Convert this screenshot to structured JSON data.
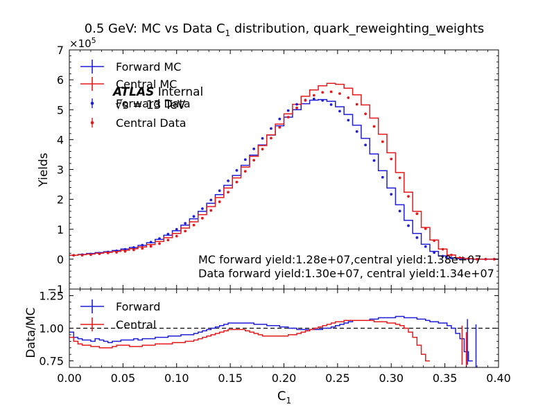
{
  "title_prefix": "0.5 GeV: MC vs Data C",
  "title_sub": "1",
  "title_suffix": " distribution, quark_reweighting_weights",
  "atlas": {
    "bold": "ATLAS",
    "rest": " Internal",
    "energy": "√s = 13 TeV"
  },
  "annotations": {
    "mc_yield": "MC forward yield:1.28e+07,central yield:1.38e+07",
    "data_yield": "Data forward yield:1.30e+07, central yield:1.34e+07"
  },
  "colors": {
    "forward": "#1f1fd6",
    "central": "#e31a1c",
    "reference": "#000000"
  },
  "chart_data": [
    {
      "type": "line",
      "panel": "main",
      "xlabel_main": "C",
      "xlabel_sub": "1",
      "ylabel": "Yields",
      "xlim": [
        0.0,
        0.4
      ],
      "ylim": [
        -1,
        7
      ],
      "y_multiplier_label": "×10",
      "y_multiplier_exp": "5",
      "xticks": [
        "0.00",
        "0.05",
        "0.10",
        "0.15",
        "0.20",
        "0.25",
        "0.30",
        "0.35",
        "0.40"
      ],
      "yticks": [
        "−1",
        "0",
        "1",
        "2",
        "3",
        "4",
        "5",
        "6",
        "7"
      ],
      "legend": [
        "Forward MC",
        "Central MC",
        "Forward Data",
        "Central Data"
      ],
      "legend_position": "upper-left",
      "bin_width": 0.008,
      "bin_starts": [
        0.0,
        0.008,
        0.016,
        0.024,
        0.032,
        0.04,
        0.048,
        0.056,
        0.064,
        0.072,
        0.08,
        0.088,
        0.096,
        0.104,
        0.112,
        0.12,
        0.128,
        0.136,
        0.144,
        0.152,
        0.16,
        0.168,
        0.176,
        0.184,
        0.192,
        0.2,
        0.208,
        0.216,
        0.224,
        0.232,
        0.24,
        0.248,
        0.256,
        0.264,
        0.272,
        0.28,
        0.288,
        0.296,
        0.304,
        0.312,
        0.32,
        0.328,
        0.336,
        0.344,
        0.352,
        0.36,
        0.368,
        0.376,
        0.384,
        0.392
      ],
      "series": [
        {
          "name": "Forward MC",
          "style": "step",
          "values": [
            0.13,
            0.16,
            0.19,
            0.22,
            0.25,
            0.29,
            0.34,
            0.39,
            0.46,
            0.55,
            0.66,
            0.8,
            0.95,
            1.14,
            1.35,
            1.6,
            1.87,
            2.16,
            2.47,
            2.8,
            3.14,
            3.48,
            3.82,
            4.15,
            4.46,
            4.75,
            5.0,
            5.2,
            5.32,
            5.34,
            5.28,
            5.1,
            4.84,
            4.48,
            4.04,
            3.52,
            2.96,
            2.38,
            1.82,
            1.3,
            0.86,
            0.5,
            0.26,
            0.11,
            0.04,
            0.02,
            0.01,
            0.0,
            0.0,
            0.0
          ]
        },
        {
          "name": "Central MC",
          "style": "step",
          "values": [
            0.13,
            0.15,
            0.17,
            0.2,
            0.23,
            0.26,
            0.3,
            0.35,
            0.41,
            0.49,
            0.59,
            0.72,
            0.86,
            1.04,
            1.25,
            1.49,
            1.76,
            2.06,
            2.38,
            2.72,
            3.08,
            3.44,
            3.8,
            4.16,
            4.52,
            4.86,
            5.18,
            5.45,
            5.66,
            5.8,
            5.88,
            5.85,
            5.72,
            5.5,
            5.16,
            4.72,
            4.18,
            3.56,
            2.9,
            2.24,
            1.6,
            1.06,
            0.64,
            0.34,
            0.14,
            0.05,
            0.02,
            0.0,
            0.0,
            0.0
          ]
        },
        {
          "name": "Forward Data",
          "style": "points",
          "values": [
            0.13,
            0.15,
            0.17,
            0.2,
            0.24,
            0.28,
            0.33,
            0.39,
            0.47,
            0.57,
            0.69,
            0.84,
            1.0,
            1.2,
            1.43,
            1.69,
            1.98,
            2.29,
            2.62,
            2.97,
            3.33,
            3.69,
            4.04,
            4.37,
            4.69,
            4.97,
            5.18,
            5.32,
            5.36,
            5.31,
            5.17,
            4.95,
            4.65,
            4.27,
            3.82,
            3.3,
            2.74,
            2.17,
            1.61,
            1.12,
            0.72,
            0.42,
            0.22,
            0.1,
            0.04,
            0.02,
            0.01,
            0.0,
            0.0,
            0.0
          ]
        },
        {
          "name": "Central Data",
          "style": "points",
          "values": [
            0.13,
            0.13,
            0.15,
            0.18,
            0.21,
            0.23,
            0.26,
            0.31,
            0.36,
            0.43,
            0.52,
            0.64,
            0.77,
            0.94,
            1.14,
            1.37,
            1.63,
            1.92,
            2.24,
            2.58,
            2.94,
            3.31,
            3.68,
            4.05,
            4.41,
            4.75,
            5.06,
            5.31,
            5.48,
            5.58,
            5.6,
            5.54,
            5.4,
            5.18,
            4.86,
            4.44,
            3.93,
            3.35,
            2.72,
            2.1,
            1.52,
            1.02,
            0.62,
            0.33,
            0.14,
            0.05,
            0.02,
            0.0,
            0.0,
            0.0
          ]
        }
      ]
    },
    {
      "type": "line",
      "panel": "ratio",
      "ylabel": "Data/MC",
      "xlim": [
        0.0,
        0.4
      ],
      "ylim": [
        0.7,
        1.3
      ],
      "yticks": [
        "0.75",
        "1.00",
        "1.25"
      ],
      "xticks": [
        "0.00",
        "0.05",
        "0.10",
        "0.15",
        "0.20",
        "0.25",
        "0.30",
        "0.35",
        "0.40"
      ],
      "reference_line": 1.0,
      "legend": [
        "Forward",
        "Central"
      ],
      "legend_position": "upper-left",
      "bin_width": 0.004,
      "forward_values": [
        0.97,
        0.93,
        0.92,
        0.91,
        0.91,
        0.9,
        0.92,
        0.91,
        0.9,
        0.89,
        0.9,
        0.9,
        0.91,
        0.91,
        0.91,
        0.92,
        0.91,
        0.92,
        0.92,
        0.92,
        0.93,
        0.93,
        0.93,
        0.94,
        0.94,
        0.94,
        0.95,
        0.95,
        0.95,
        0.96,
        0.97,
        0.98,
        0.99,
        1.0,
        1.01,
        1.02,
        1.03,
        1.04,
        1.04,
        1.04,
        1.04,
        1.04,
        1.04,
        1.03,
        1.03,
        1.03,
        1.02,
        1.02,
        1.02,
        1.01,
        1.01,
        1.0,
        1.0,
        0.99,
        0.99,
        0.99,
        0.99,
        0.99,
        0.99,
        1.0,
        1.0,
        1.01,
        1.02,
        1.03,
        1.04,
        1.05,
        1.06,
        1.06,
        1.06,
        1.06,
        1.07,
        1.07,
        1.08,
        1.08,
        1.08,
        1.08,
        1.09,
        1.09,
        1.08,
        1.08,
        1.08,
        1.07,
        1.07,
        1.06,
        1.05,
        1.05,
        1.04,
        1.04,
        1.02,
        1.0,
        0.96,
        0.92,
        0.82,
        0.75
      ],
      "central_values": [
        0.93,
        0.9,
        0.88,
        0.87,
        0.87,
        0.86,
        0.86,
        0.85,
        0.85,
        0.85,
        0.86,
        0.87,
        0.87,
        0.87,
        0.86,
        0.86,
        0.86,
        0.87,
        0.87,
        0.87,
        0.88,
        0.88,
        0.88,
        0.88,
        0.89,
        0.89,
        0.89,
        0.9,
        0.9,
        0.91,
        0.92,
        0.93,
        0.94,
        0.95,
        0.96,
        0.97,
        0.98,
        0.99,
        0.99,
        0.99,
        0.99,
        0.98,
        0.97,
        0.96,
        0.95,
        0.94,
        0.94,
        0.94,
        0.94,
        0.94,
        0.94,
        0.95,
        0.95,
        0.96,
        0.97,
        0.98,
        0.99,
        1.0,
        1.01,
        1.02,
        1.03,
        1.04,
        1.05,
        1.05,
        1.06,
        1.06,
        1.06,
        1.06,
        1.06,
        1.06,
        1.06,
        1.05,
        1.05,
        1.05,
        1.04,
        1.04,
        1.03,
        1.02,
        1.0,
        0.97,
        0.93,
        0.87,
        0.8,
        0.75
      ],
      "forward_errbars": [
        {
          "x": 0.371,
          "low": 0.72,
          "high": 1.07
        },
        {
          "x": 0.379,
          "low": 0.7,
          "high": 1.03
        }
      ],
      "central_errbars": [
        {
          "x": 0.366,
          "low": 0.72,
          "high": 1.02
        },
        {
          "x": 0.37,
          "low": 0.7,
          "high": 0.97
        }
      ]
    }
  ]
}
